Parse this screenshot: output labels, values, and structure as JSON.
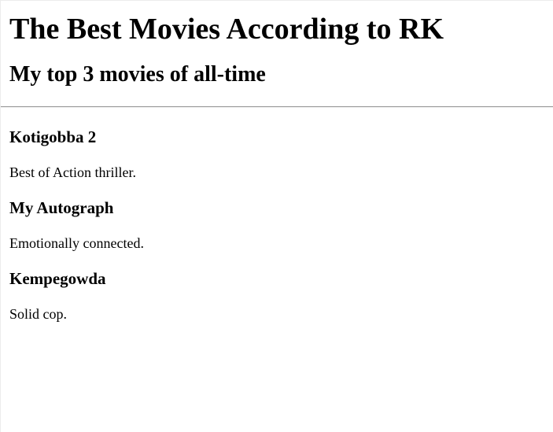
{
  "page": {
    "title": "The Best Movies According to RK",
    "subtitle": "My top 3 movies of all-time"
  },
  "movies": [
    {
      "title": "Kotigobba 2",
      "description": "Best of Action thriller."
    },
    {
      "title": "My Autograph",
      "description": "Emotionally connected."
    },
    {
      "title": "Kempegowda",
      "description": "Solid cop."
    }
  ]
}
